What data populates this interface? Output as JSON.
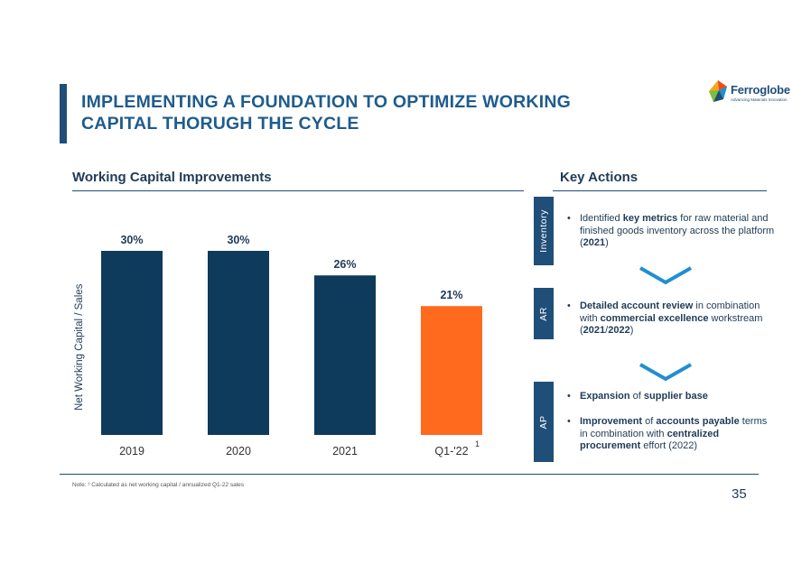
{
  "title_line1": "IMPLEMENTING A FOUNDATION TO OPTIMIZE WORKING",
  "title_line2": "CAPITAL THORUGH THE CYCLE",
  "logo": {
    "name": "Ferroglobe",
    "tagline": "Advancing Materials Innovation"
  },
  "left_heading": "Working Capital Improvements",
  "right_heading": "Key Actions",
  "chart_data": {
    "type": "bar",
    "title": "",
    "xlabel": "",
    "ylabel": "Net Working Capital / Sales",
    "categories": [
      "2019",
      "2020",
      "2021",
      "Q1-'22"
    ],
    "values": [
      30,
      30,
      26,
      21
    ],
    "data_labels": [
      "30%",
      "30%",
      "26%",
      "21%"
    ],
    "colors": [
      "#0e3a5c",
      "#0e3a5c",
      "#0e3a5c",
      "#ff6a1f"
    ],
    "ylim": [
      0,
      30
    ],
    "footnote_mark": "1"
  },
  "tabs": {
    "inventory": "Inventory",
    "ar": "AR",
    "ap": "AP"
  },
  "bullet": "•",
  "actions": {
    "a1": {
      "p1": "Identified ",
      "b1": "key metrics",
      "p2": " for raw material and finished goods inventory across the platform (",
      "b2": "2021",
      "p3": ")"
    },
    "a2": {
      "b1": "Detailed account review",
      "p1": " in combination with ",
      "b2": "commercial excellence",
      "p2": " workstream (",
      "b3": "2021",
      "p3": "/",
      "b4": "2022",
      "p4": ")"
    },
    "a3": {
      "b1": "Expansion",
      "p1": " of ",
      "b2": "supplier base"
    },
    "a4": {
      "b1": "Improvement",
      "p1": " of ",
      "b2": "accounts payable",
      "p2": " terms in  combination with ",
      "b3": "centralized procurement",
      "p3": " effort (2022)"
    }
  },
  "note": "Note: ¹ Calculated as net working capital / annualized Q1-22 sales",
  "page_number": "35"
}
